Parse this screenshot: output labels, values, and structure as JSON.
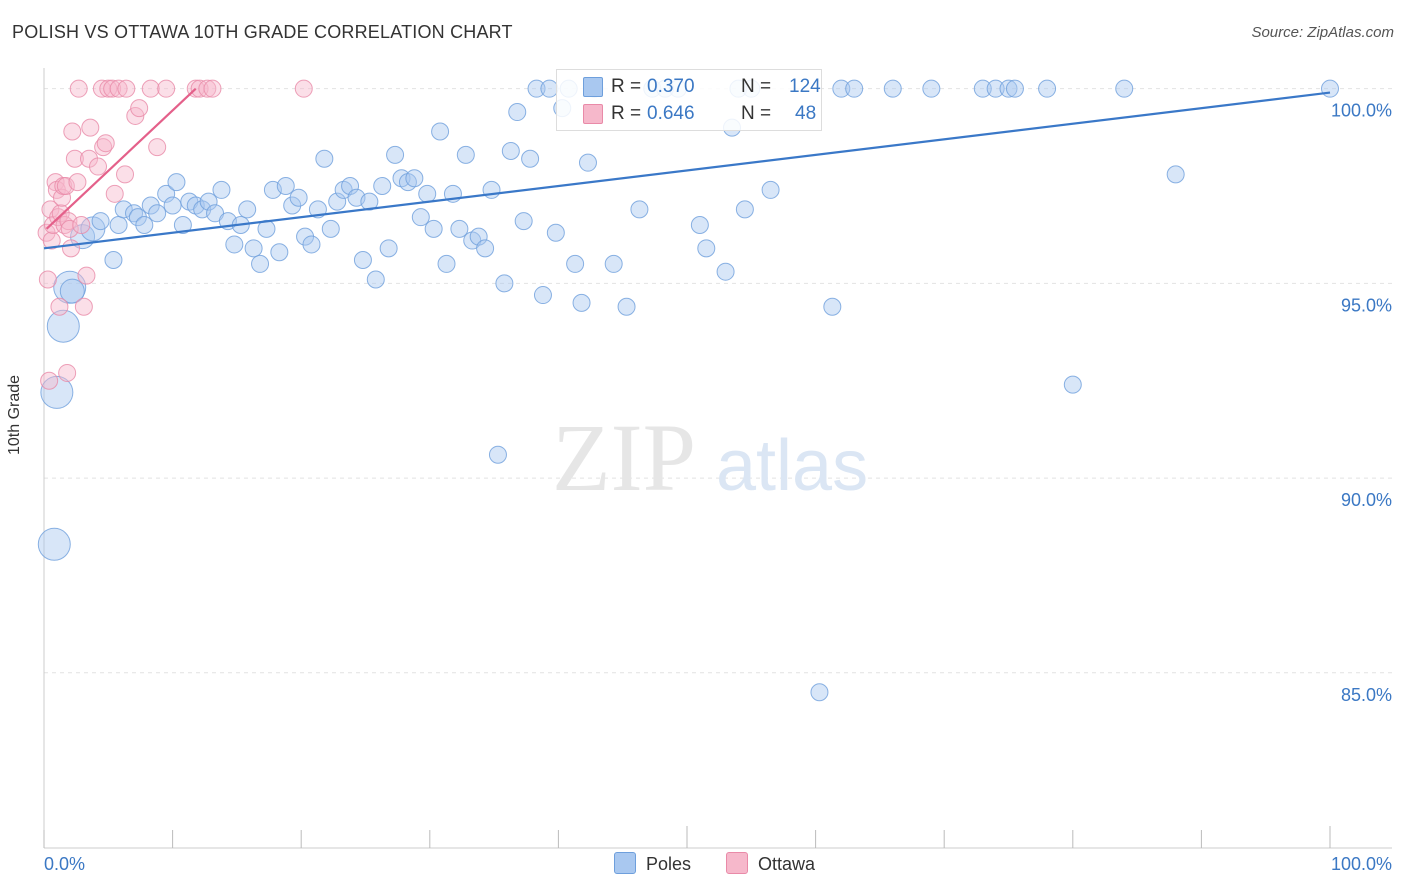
{
  "header": {
    "title": "POLISH VS OTTAWA 10TH GRADE CORRELATION CHART",
    "source": "Source: ZipAtlas.com"
  },
  "watermark": {
    "zip": "ZIP",
    "atlas": "atlas"
  },
  "stats": {
    "poles": {
      "r_label": "R =",
      "r_value": "0.370",
      "n_label": "N =",
      "n_value": "124"
    },
    "ottawa": {
      "r_label": "R =",
      "r_value": "0.646",
      "n_label": "N =",
      "n_value": "48"
    }
  },
  "legend": {
    "poles": "Poles",
    "ottawa": "Ottawa"
  },
  "colors": {
    "poles_fill": "#a9c8f0",
    "poles_stroke": "#6e9fdc",
    "poles_line": "#3a78c8",
    "ottawa_fill": "#f6b8cb",
    "ottawa_stroke": "#e98aa8",
    "ottawa_line": "#e4608a",
    "tick_label": "#3b78c4",
    "grid": "#e2e2e2",
    "axis": "#cccccc"
  },
  "chart_data": {
    "type": "scatter",
    "title": "POLISH VS OTTAWA 10TH GRADE CORRELATION CHART",
    "xlabel": "",
    "ylabel": "10th Grade",
    "xlim": [
      0,
      100
    ],
    "ylim": [
      80.5,
      100.3
    ],
    "x_tick_labels": [
      "0.0%",
      "100.0%"
    ],
    "y_ticks": [
      85,
      90,
      95,
      100
    ],
    "y_tick_labels": [
      "85.0%",
      "90.0%",
      "95.0%",
      "100.0%"
    ],
    "grid": true,
    "legend_position": "bottom-center",
    "series": [
      {
        "name": "Poles",
        "r": 0.37,
        "n": 124,
        "trend": {
          "x": [
            0,
            100
          ],
          "y": [
            95.9,
            99.9
          ]
        },
        "points": [
          {
            "x": 0.8,
            "y": 88.3,
            "s": 3
          },
          {
            "x": 1.0,
            "y": 92.2,
            "s": 3
          },
          {
            "x": 1.5,
            "y": 93.9,
            "s": 3
          },
          {
            "x": 2.0,
            "y": 94.9,
            "s": 3
          },
          {
            "x": 2.2,
            "y": 94.8,
            "s": 2
          },
          {
            "x": 3.0,
            "y": 96.2,
            "s": 2
          },
          {
            "x": 3.8,
            "y": 96.4,
            "s": 2
          },
          {
            "x": 4.4,
            "y": 96.6,
            "s": 1
          },
          {
            "x": 5.4,
            "y": 95.6,
            "s": 1
          },
          {
            "x": 5.8,
            "y": 96.5,
            "s": 1
          },
          {
            "x": 6.2,
            "y": 96.9,
            "s": 1
          },
          {
            "x": 7.0,
            "y": 96.8,
            "s": 1
          },
          {
            "x": 7.3,
            "y": 96.7,
            "s": 1
          },
          {
            "x": 7.8,
            "y": 96.5,
            "s": 1
          },
          {
            "x": 8.3,
            "y": 97.0,
            "s": 1
          },
          {
            "x": 8.8,
            "y": 96.8,
            "s": 1
          },
          {
            "x": 9.5,
            "y": 97.3,
            "s": 1
          },
          {
            "x": 10.0,
            "y": 97.0,
            "s": 1
          },
          {
            "x": 10.3,
            "y": 97.6,
            "s": 1
          },
          {
            "x": 10.8,
            "y": 96.5,
            "s": 1
          },
          {
            "x": 11.3,
            "y": 97.1,
            "s": 1
          },
          {
            "x": 11.8,
            "y": 97.0,
            "s": 1
          },
          {
            "x": 12.3,
            "y": 96.9,
            "s": 1
          },
          {
            "x": 12.8,
            "y": 97.1,
            "s": 1
          },
          {
            "x": 13.3,
            "y": 96.8,
            "s": 1
          },
          {
            "x": 13.8,
            "y": 97.4,
            "s": 1
          },
          {
            "x": 14.3,
            "y": 96.6,
            "s": 1
          },
          {
            "x": 14.8,
            "y": 96.0,
            "s": 1
          },
          {
            "x": 15.3,
            "y": 96.5,
            "s": 1
          },
          {
            "x": 15.8,
            "y": 96.9,
            "s": 1
          },
          {
            "x": 16.3,
            "y": 95.9,
            "s": 1
          },
          {
            "x": 16.8,
            "y": 95.5,
            "s": 1
          },
          {
            "x": 17.3,
            "y": 96.4,
            "s": 1
          },
          {
            "x": 17.8,
            "y": 97.4,
            "s": 1
          },
          {
            "x": 18.3,
            "y": 95.8,
            "s": 1
          },
          {
            "x": 18.8,
            "y": 97.5,
            "s": 1
          },
          {
            "x": 19.3,
            "y": 97.0,
            "s": 1
          },
          {
            "x": 19.8,
            "y": 97.2,
            "s": 1
          },
          {
            "x": 20.3,
            "y": 96.2,
            "s": 1
          },
          {
            "x": 20.8,
            "y": 96.0,
            "s": 1
          },
          {
            "x": 21.3,
            "y": 96.9,
            "s": 1
          },
          {
            "x": 21.8,
            "y": 98.2,
            "s": 1
          },
          {
            "x": 22.3,
            "y": 96.4,
            "s": 1
          },
          {
            "x": 22.8,
            "y": 97.1,
            "s": 1
          },
          {
            "x": 23.3,
            "y": 97.4,
            "s": 1
          },
          {
            "x": 23.8,
            "y": 97.5,
            "s": 1
          },
          {
            "x": 24.3,
            "y": 97.2,
            "s": 1
          },
          {
            "x": 24.8,
            "y": 95.6,
            "s": 1
          },
          {
            "x": 25.3,
            "y": 97.1,
            "s": 1
          },
          {
            "x": 25.8,
            "y": 95.1,
            "s": 1
          },
          {
            "x": 26.3,
            "y": 97.5,
            "s": 1
          },
          {
            "x": 26.8,
            "y": 95.9,
            "s": 1
          },
          {
            "x": 27.3,
            "y": 98.3,
            "s": 1
          },
          {
            "x": 27.8,
            "y": 97.7,
            "s": 1
          },
          {
            "x": 28.3,
            "y": 97.6,
            "s": 1
          },
          {
            "x": 28.8,
            "y": 97.7,
            "s": 1
          },
          {
            "x": 29.3,
            "y": 96.7,
            "s": 1
          },
          {
            "x": 29.8,
            "y": 97.3,
            "s": 1
          },
          {
            "x": 30.3,
            "y": 96.4,
            "s": 1
          },
          {
            "x": 30.8,
            "y": 98.9,
            "s": 1
          },
          {
            "x": 31.3,
            "y": 95.5,
            "s": 1
          },
          {
            "x": 31.8,
            "y": 97.3,
            "s": 1
          },
          {
            "x": 32.3,
            "y": 96.4,
            "s": 1
          },
          {
            "x": 32.8,
            "y": 98.3,
            "s": 1
          },
          {
            "x": 33.3,
            "y": 96.1,
            "s": 1
          },
          {
            "x": 33.8,
            "y": 96.2,
            "s": 1
          },
          {
            "x": 34.3,
            "y": 95.9,
            "s": 1
          },
          {
            "x": 34.8,
            "y": 97.4,
            "s": 1
          },
          {
            "x": 35.3,
            "y": 90.6,
            "s": 1
          },
          {
            "x": 35.8,
            "y": 95.0,
            "s": 1
          },
          {
            "x": 36.3,
            "y": 98.4,
            "s": 1
          },
          {
            "x": 36.8,
            "y": 99.4,
            "s": 1
          },
          {
            "x": 37.3,
            "y": 96.6,
            "s": 1
          },
          {
            "x": 37.8,
            "y": 98.2,
            "s": 1
          },
          {
            "x": 38.3,
            "y": 100.0,
            "s": 1
          },
          {
            "x": 38.8,
            "y": 94.7,
            "s": 1
          },
          {
            "x": 39.3,
            "y": 100.0,
            "s": 1
          },
          {
            "x": 39.8,
            "y": 96.3,
            "s": 1
          },
          {
            "x": 40.3,
            "y": 99.5,
            "s": 1
          },
          {
            "x": 40.8,
            "y": 100.0,
            "s": 1
          },
          {
            "x": 41.3,
            "y": 95.5,
            "s": 1
          },
          {
            "x": 41.8,
            "y": 94.5,
            "s": 1
          },
          {
            "x": 42.3,
            "y": 98.1,
            "s": 1
          },
          {
            "x": 42.8,
            "y": 100.0,
            "s": 1
          },
          {
            "x": 44.3,
            "y": 95.5,
            "s": 1
          },
          {
            "x": 45.3,
            "y": 94.4,
            "s": 1
          },
          {
            "x": 46.3,
            "y": 96.9,
            "s": 1
          },
          {
            "x": 47.3,
            "y": 100.0,
            "s": 1
          },
          {
            "x": 48.3,
            "y": 100.0,
            "s": 1
          },
          {
            "x": 49.3,
            "y": 100.0,
            "s": 1
          },
          {
            "x": 51.0,
            "y": 96.5,
            "s": 1
          },
          {
            "x": 51.5,
            "y": 95.9,
            "s": 1
          },
          {
            "x": 53.0,
            "y": 95.3,
            "s": 1
          },
          {
            "x": 53.5,
            "y": 99.0,
            "s": 1
          },
          {
            "x": 54.0,
            "y": 100.0,
            "s": 1
          },
          {
            "x": 54.5,
            "y": 96.9,
            "s": 1
          },
          {
            "x": 55.0,
            "y": 100.0,
            "s": 1
          },
          {
            "x": 56.5,
            "y": 97.4,
            "s": 1
          },
          {
            "x": 60.3,
            "y": 84.5,
            "s": 1
          },
          {
            "x": 61.3,
            "y": 94.4,
            "s": 1
          },
          {
            "x": 62.0,
            "y": 100.0,
            "s": 1
          },
          {
            "x": 63.0,
            "y": 100.0,
            "s": 1
          },
          {
            "x": 66.0,
            "y": 100.0,
            "s": 1
          },
          {
            "x": 69.0,
            "y": 100.0,
            "s": 1
          },
          {
            "x": 73.0,
            "y": 100.0,
            "s": 1
          },
          {
            "x": 74.0,
            "y": 100.0,
            "s": 1
          },
          {
            "x": 75.0,
            "y": 100.0,
            "s": 1
          },
          {
            "x": 75.5,
            "y": 100.0,
            "s": 1
          },
          {
            "x": 78.0,
            "y": 100.0,
            "s": 1
          },
          {
            "x": 80.0,
            "y": 92.4,
            "s": 1
          },
          {
            "x": 84.0,
            "y": 100.0,
            "s": 1
          },
          {
            "x": 88.0,
            "y": 97.8,
            "s": 1
          },
          {
            "x": 100.0,
            "y": 100.0,
            "s": 1
          }
        ]
      },
      {
        "name": "Ottawa",
        "r": 0.646,
        "n": 48,
        "trend": {
          "x": [
            0.2,
            11.8
          ],
          "y": [
            96.4,
            100.0
          ]
        },
        "points": [
          {
            "x": 0.2,
            "y": 96.3,
            "s": 1
          },
          {
            "x": 0.3,
            "y": 95.1,
            "s": 1
          },
          {
            "x": 0.4,
            "y": 92.5,
            "s": 1
          },
          {
            "x": 0.5,
            "y": 96.9,
            "s": 1
          },
          {
            "x": 0.6,
            "y": 96.1,
            "s": 1
          },
          {
            "x": 0.7,
            "y": 96.5,
            "s": 1
          },
          {
            "x": 0.9,
            "y": 97.6,
            "s": 1
          },
          {
            "x": 1.0,
            "y": 97.4,
            "s": 1
          },
          {
            "x": 1.1,
            "y": 96.7,
            "s": 1
          },
          {
            "x": 1.2,
            "y": 94.4,
            "s": 1
          },
          {
            "x": 1.3,
            "y": 96.8,
            "s": 1
          },
          {
            "x": 1.4,
            "y": 97.2,
            "s": 1
          },
          {
            "x": 1.5,
            "y": 97.5,
            "s": 1
          },
          {
            "x": 1.6,
            "y": 96.5,
            "s": 1
          },
          {
            "x": 1.7,
            "y": 97.5,
            "s": 1
          },
          {
            "x": 1.8,
            "y": 92.7,
            "s": 1
          },
          {
            "x": 1.9,
            "y": 96.6,
            "s": 1
          },
          {
            "x": 2.0,
            "y": 96.4,
            "s": 1
          },
          {
            "x": 2.1,
            "y": 95.9,
            "s": 1
          },
          {
            "x": 2.2,
            "y": 98.9,
            "s": 1
          },
          {
            "x": 2.4,
            "y": 98.2,
            "s": 1
          },
          {
            "x": 2.6,
            "y": 97.6,
            "s": 1
          },
          {
            "x": 2.7,
            "y": 100.0,
            "s": 1
          },
          {
            "x": 2.9,
            "y": 96.5,
            "s": 1
          },
          {
            "x": 3.1,
            "y": 94.4,
            "s": 1
          },
          {
            "x": 3.3,
            "y": 95.2,
            "s": 1
          },
          {
            "x": 3.5,
            "y": 98.2,
            "s": 1
          },
          {
            "x": 3.6,
            "y": 99.0,
            "s": 1
          },
          {
            "x": 4.2,
            "y": 98.0,
            "s": 1
          },
          {
            "x": 4.6,
            "y": 98.5,
            "s": 1
          },
          {
            "x": 4.8,
            "y": 98.6,
            "s": 1
          },
          {
            "x": 5.5,
            "y": 97.3,
            "s": 1
          },
          {
            "x": 4.5,
            "y": 100.0,
            "s": 1
          },
          {
            "x": 5.0,
            "y": 100.0,
            "s": 1
          },
          {
            "x": 5.3,
            "y": 100.0,
            "s": 1
          },
          {
            "x": 5.8,
            "y": 100.0,
            "s": 1
          },
          {
            "x": 6.4,
            "y": 100.0,
            "s": 1
          },
          {
            "x": 6.3,
            "y": 97.8,
            "s": 1
          },
          {
            "x": 7.1,
            "y": 99.3,
            "s": 1
          },
          {
            "x": 7.4,
            "y": 99.5,
            "s": 1
          },
          {
            "x": 8.3,
            "y": 100.0,
            "s": 1
          },
          {
            "x": 8.8,
            "y": 98.5,
            "s": 1
          },
          {
            "x": 9.5,
            "y": 100.0,
            "s": 1
          },
          {
            "x": 11.8,
            "y": 100.0,
            "s": 1
          },
          {
            "x": 12.1,
            "y": 100.0,
            "s": 1
          },
          {
            "x": 12.7,
            "y": 100.0,
            "s": 1
          },
          {
            "x": 13.1,
            "y": 100.0,
            "s": 1
          },
          {
            "x": 20.2,
            "y": 100.0,
            "s": 1
          }
        ]
      }
    ]
  }
}
